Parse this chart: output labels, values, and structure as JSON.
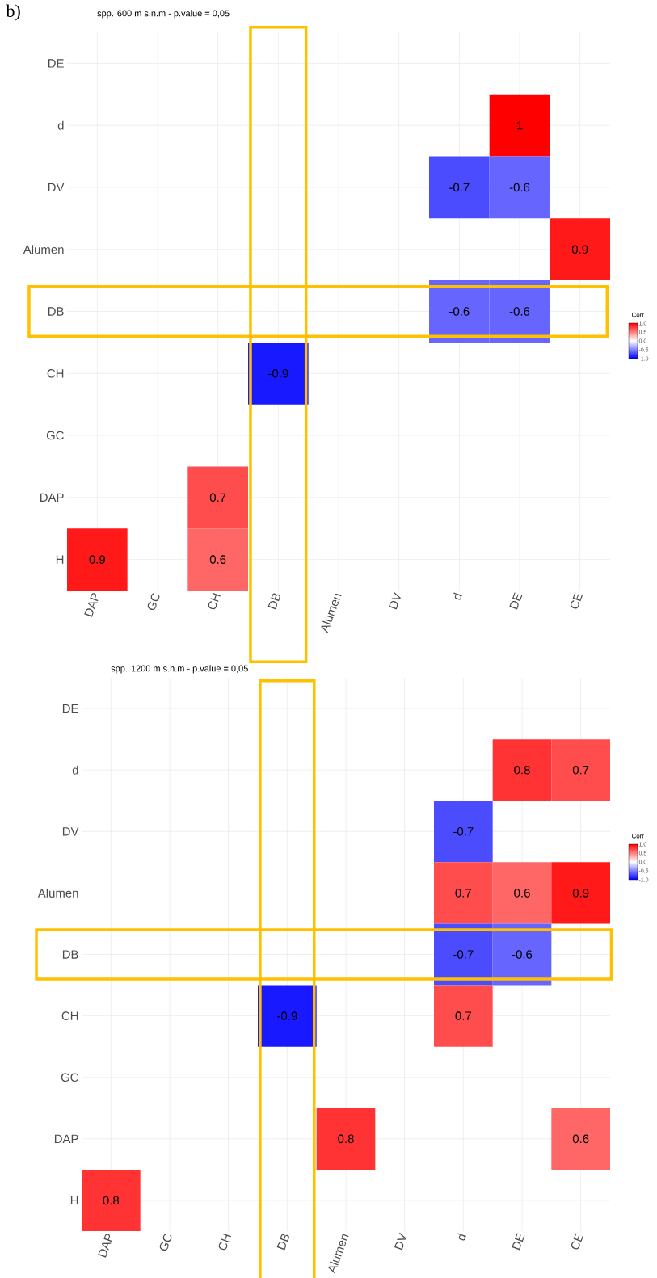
{
  "chart_data": [
    {
      "type": "heatmap",
      "title": "spp. 600 m s.n.m - p.value = 0,05",
      "annotations": [
        "b)"
      ],
      "clabel": "Corr",
      "data_labels": true,
      "grid": true,
      "categories": [
        "DAP",
        "GC",
        "CH",
        "DB",
        "Alumen",
        "DV",
        "d",
        "DE",
        "CE"
      ],
      "y_categories": [
        "DE",
        "d",
        "DV",
        "Alumen",
        "DB",
        "CH",
        "GC",
        "DAP",
        "H"
      ],
      "cells": [
        [
          null,
          null,
          null,
          null,
          null,
          null,
          null,
          null,
          null
        ],
        [
          null,
          null,
          null,
          null,
          null,
          null,
          null,
          1,
          null
        ],
        [
          null,
          null,
          null,
          null,
          null,
          null,
          -0.7,
          -0.6,
          null
        ],
        [
          null,
          null,
          null,
          null,
          null,
          null,
          null,
          null,
          0.9
        ],
        [
          null,
          null,
          null,
          null,
          null,
          null,
          -0.6,
          -0.6,
          null
        ],
        [
          null,
          null,
          null,
          -0.9,
          null,
          null,
          null,
          null,
          null
        ],
        [
          null,
          null,
          null,
          null,
          null,
          null,
          null,
          null,
          null
        ],
        [
          null,
          null,
          0.7,
          null,
          null,
          null,
          null,
          null,
          null
        ],
        [
          0.9,
          null,
          0.6,
          null,
          null,
          null,
          null,
          null,
          null
        ]
      ],
      "clim": [
        -1,
        1
      ],
      "cticks": [
        {
          "value": -1,
          "label": "-1.0"
        },
        {
          "value": -0.5,
          "label": "-0.5"
        },
        {
          "value": 0,
          "label": "0.0"
        },
        {
          "value": 0.5,
          "label": "0.5"
        },
        {
          "value": 1,
          "label": "1.0"
        }
      ]
    },
    {
      "type": "heatmap",
      "title": "spp. 1200 m s.n.m - p.value = 0,05",
      "clabel": "Corr",
      "data_labels": true,
      "grid": true,
      "categories": [
        "DAP",
        "GC",
        "CH",
        "DB",
        "Alumen",
        "DV",
        "d",
        "DE",
        "CE"
      ],
      "y_categories": [
        "DE",
        "d",
        "DV",
        "Alumen",
        "DB",
        "CH",
        "GC",
        "DAP",
        "H"
      ],
      "cells": [
        [
          null,
          null,
          null,
          null,
          null,
          null,
          null,
          null,
          null
        ],
        [
          null,
          null,
          null,
          null,
          null,
          null,
          null,
          0.8,
          0.7
        ],
        [
          null,
          null,
          null,
          null,
          null,
          null,
          -0.7,
          null,
          null
        ],
        [
          null,
          null,
          null,
          null,
          null,
          null,
          0.7,
          0.6,
          0.9
        ],
        [
          null,
          null,
          null,
          null,
          null,
          null,
          -0.7,
          -0.6,
          null
        ],
        [
          null,
          null,
          null,
          -0.9,
          null,
          null,
          0.7,
          null,
          null
        ],
        [
          null,
          null,
          null,
          null,
          null,
          null,
          null,
          null,
          null
        ],
        [
          null,
          null,
          null,
          null,
          0.8,
          null,
          null,
          null,
          0.6
        ],
        [
          0.8,
          null,
          null,
          null,
          null,
          null,
          null,
          null,
          null
        ]
      ],
      "clim": [
        -1,
        1
      ],
      "cticks": [
        {
          "value": -1,
          "label": "-1.0"
        },
        {
          "value": -0.5,
          "label": "-0.5"
        },
        {
          "value": 0,
          "label": "0.0"
        },
        {
          "value": 0.5,
          "label": "0.5"
        },
        {
          "value": 1,
          "label": "1.0"
        }
      ]
    }
  ]
}
